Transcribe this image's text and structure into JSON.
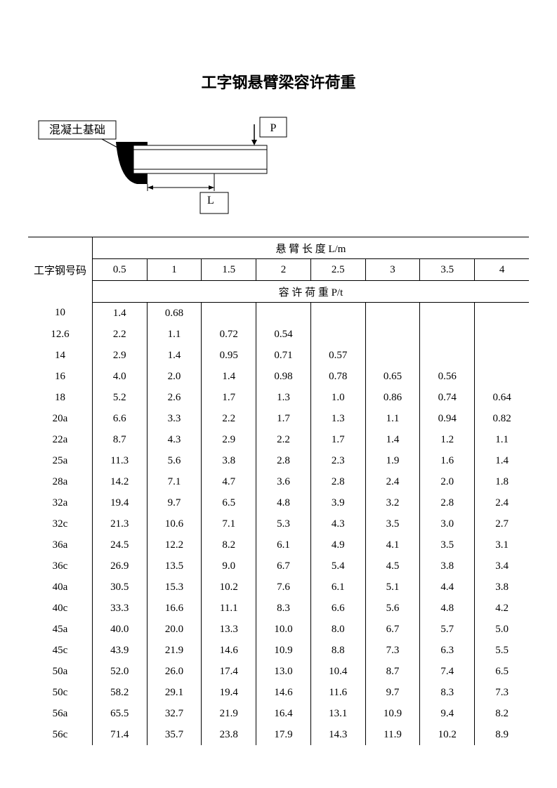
{
  "title": "工字钢悬臂梁容许荷重",
  "diagram": {
    "foundation_label": "混凝土基础",
    "load_label": "P",
    "length_label": "L"
  },
  "table": {
    "row_header": "工字钢号码",
    "span_header": "悬 臂 长 度   L/m",
    "load_header": "容 许 荷 重   P/t",
    "lengths": [
      "0.5",
      "1",
      "1.5",
      "2",
      "2.5",
      "3",
      "3.5",
      "4"
    ],
    "rows": [
      {
        "code": "10",
        "vals": [
          "1.4",
          "0.68",
          "",
          "",
          "",
          "",
          "",
          ""
        ]
      },
      {
        "code": "12.6",
        "vals": [
          "2.2",
          "1.1",
          "0.72",
          "0.54",
          "",
          "",
          "",
          ""
        ]
      },
      {
        "code": "14",
        "vals": [
          "2.9",
          "1.4",
          "0.95",
          "0.71",
          "0.57",
          "",
          "",
          ""
        ]
      },
      {
        "code": "16",
        "vals": [
          "4.0",
          "2.0",
          "1.4",
          "0.98",
          "0.78",
          "0.65",
          "0.56",
          ""
        ]
      },
      {
        "code": "18",
        "vals": [
          "5.2",
          "2.6",
          "1.7",
          "1.3",
          "1.0",
          "0.86",
          "0.74",
          "0.64"
        ]
      },
      {
        "code": "20a",
        "vals": [
          "6.6",
          "3.3",
          "2.2",
          "1.7",
          "1.3",
          "1.1",
          "0.94",
          "0.82"
        ]
      },
      {
        "code": "22a",
        "vals": [
          "8.7",
          "4.3",
          "2.9",
          "2.2",
          "1.7",
          "1.4",
          "1.2",
          "1.1"
        ]
      },
      {
        "code": "25a",
        "vals": [
          "11.3",
          "5.6",
          "3.8",
          "2.8",
          "2.3",
          "1.9",
          "1.6",
          "1.4"
        ]
      },
      {
        "code": "28a",
        "vals": [
          "14.2",
          "7.1",
          "4.7",
          "3.6",
          "2.8",
          "2.4",
          "2.0",
          "1.8"
        ]
      },
      {
        "code": "32a",
        "vals": [
          "19.4",
          "9.7",
          "6.5",
          "4.8",
          "3.9",
          "3.2",
          "2.8",
          "2.4"
        ]
      },
      {
        "code": "32c",
        "vals": [
          "21.3",
          "10.6",
          "7.1",
          "5.3",
          "4.3",
          "3.5",
          "3.0",
          "2.7"
        ]
      },
      {
        "code": "36a",
        "vals": [
          "24.5",
          "12.2",
          "8.2",
          "6.1",
          "4.9",
          "4.1",
          "3.5",
          "3.1"
        ]
      },
      {
        "code": "36c",
        "vals": [
          "26.9",
          "13.5",
          "9.0",
          "6.7",
          "5.4",
          "4.5",
          "3.8",
          "3.4"
        ]
      },
      {
        "code": "40a",
        "vals": [
          "30.5",
          "15.3",
          "10.2",
          "7.6",
          "6.1",
          "5.1",
          "4.4",
          "3.8"
        ]
      },
      {
        "code": "40c",
        "vals": [
          "33.3",
          "16.6",
          "11.1",
          "8.3",
          "6.6",
          "5.6",
          "4.8",
          "4.2"
        ]
      },
      {
        "code": "45a",
        "vals": [
          "40.0",
          "20.0",
          "13.3",
          "10.0",
          "8.0",
          "6.7",
          "5.7",
          "5.0"
        ]
      },
      {
        "code": "45c",
        "vals": [
          "43.9",
          "21.9",
          "14.6",
          "10.9",
          "8.8",
          "7.3",
          "6.3",
          "5.5"
        ]
      },
      {
        "code": "50a",
        "vals": [
          "52.0",
          "26.0",
          "17.4",
          "13.0",
          "10.4",
          "8.7",
          "7.4",
          "6.5"
        ]
      },
      {
        "code": "50c",
        "vals": [
          "58.2",
          "29.1",
          "19.4",
          "14.6",
          "11.6",
          "9.7",
          "8.3",
          "7.3"
        ]
      },
      {
        "code": "56a",
        "vals": [
          "65.5",
          "32.7",
          "21.9",
          "16.4",
          "13.1",
          "10.9",
          "9.4",
          "8.2"
        ]
      },
      {
        "code": "56c",
        "vals": [
          "71.4",
          "35.7",
          "23.8",
          "17.9",
          "14.3",
          "11.9",
          "10.2",
          "8.9"
        ]
      }
    ]
  },
  "style": {
    "title_fontsize": 22,
    "table_fontsize": 15,
    "border_color": "#000000",
    "background": "#ffffff"
  }
}
